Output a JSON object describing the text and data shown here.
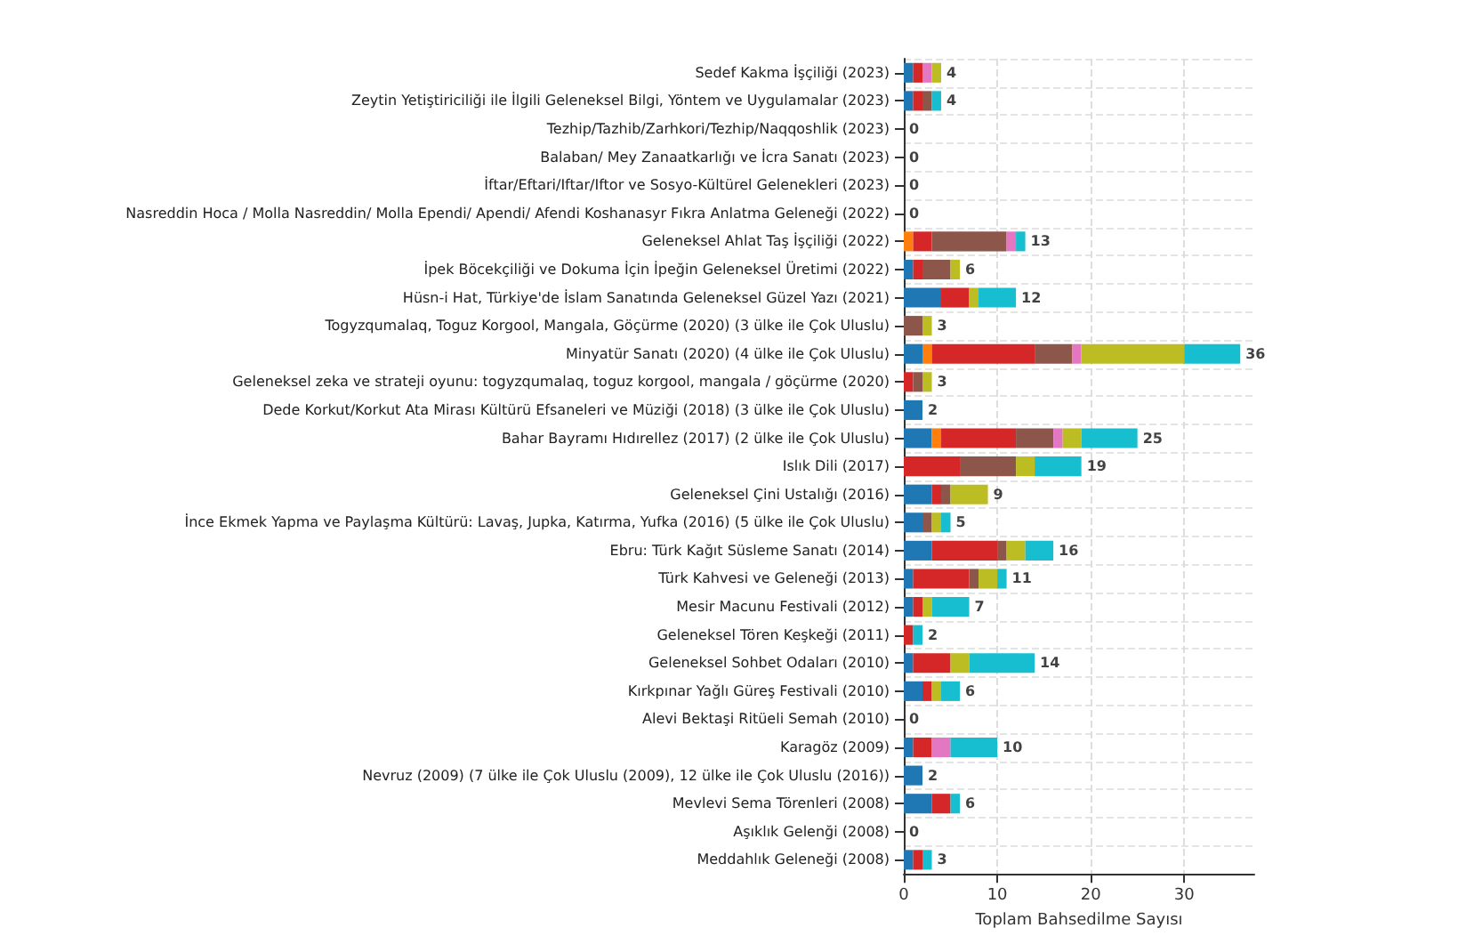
{
  "chart_data": {
    "type": "bar",
    "orientation": "horizontal",
    "stacked": true,
    "xlabel": "Toplam Bahsedilme Sayısı",
    "categories": [
      "Sedef Kakma İşçiliği (2023)",
      "Zeytin Yetiştiriciliği ile İlgili Geleneksel Bilgi, Yöntem ve Uygulamalar (2023)",
      "Tezhip/Tazhib/Zarhkori/Tezhip/Naqqoshlik (2023)",
      "Balaban/ Mey Zanaatkarlığı ve İcra Sanatı (2023)",
      "İftar/Eftari/Iftar/Iftor ve Sosyo-Kültürel Gelenekleri (2023)",
      "Nasreddin Hoca / Molla Nasreddin/ Molla Ependi/ Apendi/ Afendi Koshanasyr Fıkra Anlatma Geleneği (2022)",
      "Geleneksel Ahlat Taş İşçiliği (2022)",
      "İpek Böcekçiliği ve Dokuma İçin İpeğin Geleneksel Üretimi (2022)",
      "Hüsn-i Hat, Türkiye'de İslam Sanatında Geleneksel Güzel Yazı (2021)",
      "Togyzqumalaq, Toguz Korgool, Mangala, Göçürme (2020) (3 ülke ile Çok Uluslu)",
      "Minyatür Sanatı (2020) (4 ülke ile Çok Uluslu)",
      "Geleneksel zeka ve strateji oyunu: togyzqumalaq, toguz korgool, mangala / göçürme (2020)",
      "Dede Korkut/Korkut Ata Mirası Kültürü Efsaneleri ve Müziği (2018) (3 ülke ile Çok Uluslu)",
      "Bahar Bayramı Hıdırellez (2017) (2 ülke ile Çok Uluslu)",
      "Islık Dili (2017)",
      "Geleneksel Çini Ustalığı (2016)",
      "İnce Ekmek Yapma ve Paylaşma Kültürü: Lavaş, Jupka, Katırma, Yufka (2016) (5 ülke ile Çok Uluslu)",
      "Ebru: Türk Kağıt Süsleme Sanatı (2014)",
      "Türk Kahvesi ve Geleneği (2013)",
      "Mesir Macunu Festivali (2012)",
      "Geleneksel Tören Keşkeği (2011)",
      "Geleneksel Sohbet Odaları (2010)",
      "Kırkpınar Yağlı Güreş Festivali (2010)",
      "Alevi Bektaşi Ritüeli Semah (2010)",
      "Karagöz (2009)",
      "Nevruz (2009) (7 ülke ile Çok Uluslu (2009), 12 ülke ile Çok Uluslu (2016))",
      "Mevlevi Sema Törenleri (2008)",
      "Aşıklık Gelenği (2008)",
      "Meddahlık Geleneği (2008)"
    ],
    "series": [
      {
        "color": "#1f77b4",
        "values": [
          1,
          1,
          0,
          0,
          0,
          0,
          0,
          1,
          4,
          0,
          2,
          0,
          2,
          3,
          0,
          3,
          2,
          3,
          1,
          1,
          0,
          1,
          2,
          0,
          1,
          2,
          3,
          0,
          1
        ]
      },
      {
        "color": "#ff7f0e",
        "values": [
          0,
          0,
          0,
          0,
          0,
          0,
          1,
          0,
          0,
          0,
          1,
          0,
          0,
          1,
          0,
          0,
          0,
          0,
          0,
          0,
          0,
          0,
          0,
          0,
          0,
          0,
          0,
          0,
          0
        ]
      },
      {
        "color": "#d62728",
        "values": [
          1,
          1,
          0,
          0,
          0,
          0,
          2,
          1,
          3,
          0,
          11,
          1,
          0,
          8,
          6,
          1,
          0,
          7,
          6,
          1,
          1,
          4,
          1,
          0,
          2,
          0,
          2,
          0,
          1
        ]
      },
      {
        "color": "#8c564b",
        "values": [
          0,
          1,
          0,
          0,
          0,
          0,
          8,
          3,
          0,
          2,
          4,
          1,
          0,
          4,
          6,
          1,
          1,
          1,
          1,
          0,
          0,
          0,
          0,
          0,
          0,
          0,
          0,
          0,
          0
        ]
      },
      {
        "color": "#e377c2",
        "values": [
          1,
          0,
          0,
          0,
          0,
          0,
          1,
          0,
          0,
          0,
          1,
          0,
          0,
          1,
          0,
          0,
          0,
          0,
          0,
          0,
          0,
          0,
          0,
          0,
          2,
          0,
          0,
          0,
          0
        ]
      },
      {
        "color": "#bcbd22",
        "values": [
          1,
          0,
          0,
          0,
          0,
          0,
          0,
          1,
          1,
          1,
          11,
          1,
          0,
          2,
          2,
          4,
          1,
          2,
          2,
          1,
          0,
          2,
          1,
          0,
          0,
          0,
          0,
          0,
          0
        ]
      },
      {
        "color": "#17becf",
        "values": [
          0,
          1,
          0,
          0,
          0,
          0,
          1,
          0,
          4,
          0,
          6,
          0,
          0,
          6,
          5,
          0,
          1,
          3,
          1,
          4,
          1,
          7,
          2,
          0,
          5,
          0,
          1,
          0,
          1
        ]
      }
    ],
    "totals": [
      "4",
      "4",
      "0",
      "0",
      "0",
      "0",
      "13",
      "6",
      "12",
      "3",
      "36",
      "3",
      "2",
      "25",
      "19",
      "9",
      "5",
      "16",
      "11",
      "7",
      "2",
      "14",
      "6",
      "0",
      "10",
      "2",
      "6",
      "0",
      "3"
    ],
    "xlim": [
      0,
      37.5
    ],
    "xticks": [
      0,
      10,
      20,
      30
    ],
    "grid": true
  }
}
